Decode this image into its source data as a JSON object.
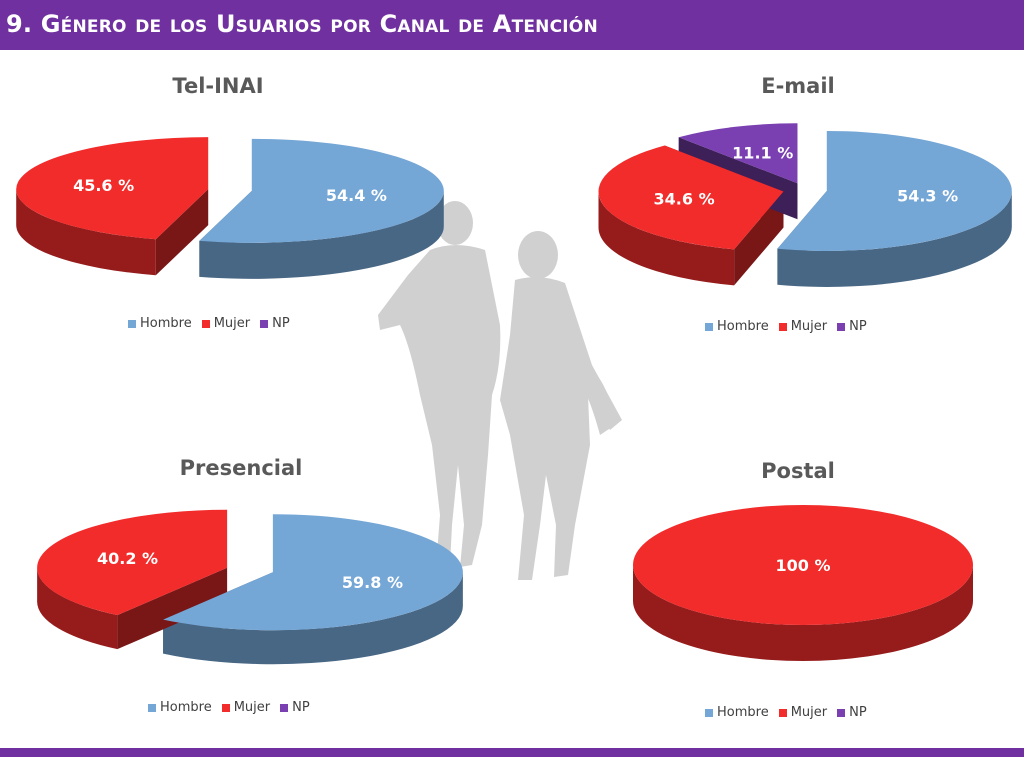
{
  "header": {
    "title": "9. Género de los Usuarios por Canal de Atención"
  },
  "legend": [
    "Hombre",
    "Mujer",
    "NP"
  ],
  "colors": {
    "Hombre": "#74a6d6",
    "Mujer": "#f22b2b",
    "NP": "#7a3fb0",
    "header": "#7030a0"
  },
  "decoration": {
    "people_silhouette_icon": "couple-walking-silhouette"
  },
  "chart_data": [
    {
      "type": "pie",
      "title": "Tel-INAI",
      "categories": [
        "Hombre",
        "Mujer",
        "NP"
      ],
      "values": [
        54.4,
        45.6,
        0
      ],
      "labels": [
        "54.4 %",
        "45.6 %",
        ""
      ],
      "style": "3d-exploded"
    },
    {
      "type": "pie",
      "title": "E-mail",
      "categories": [
        "Hombre",
        "Mujer",
        "NP"
      ],
      "values": [
        54.3,
        34.6,
        11.1
      ],
      "labels": [
        "54.3 %",
        "34.6 %",
        "11.1 %"
      ],
      "style": "3d-exploded"
    },
    {
      "type": "pie",
      "title": "Presencial",
      "categories": [
        "Hombre",
        "Mujer",
        "NP"
      ],
      "values": [
        59.8,
        40.2,
        0
      ],
      "labels": [
        "59.8 %",
        "40.2 %",
        ""
      ],
      "style": "3d-exploded"
    },
    {
      "type": "pie",
      "title": "Postal",
      "categories": [
        "Hombre",
        "Mujer",
        "NP"
      ],
      "values": [
        0,
        100,
        0
      ],
      "labels": [
        "",
        "100 %",
        ""
      ],
      "style": "3d-exploded"
    }
  ]
}
